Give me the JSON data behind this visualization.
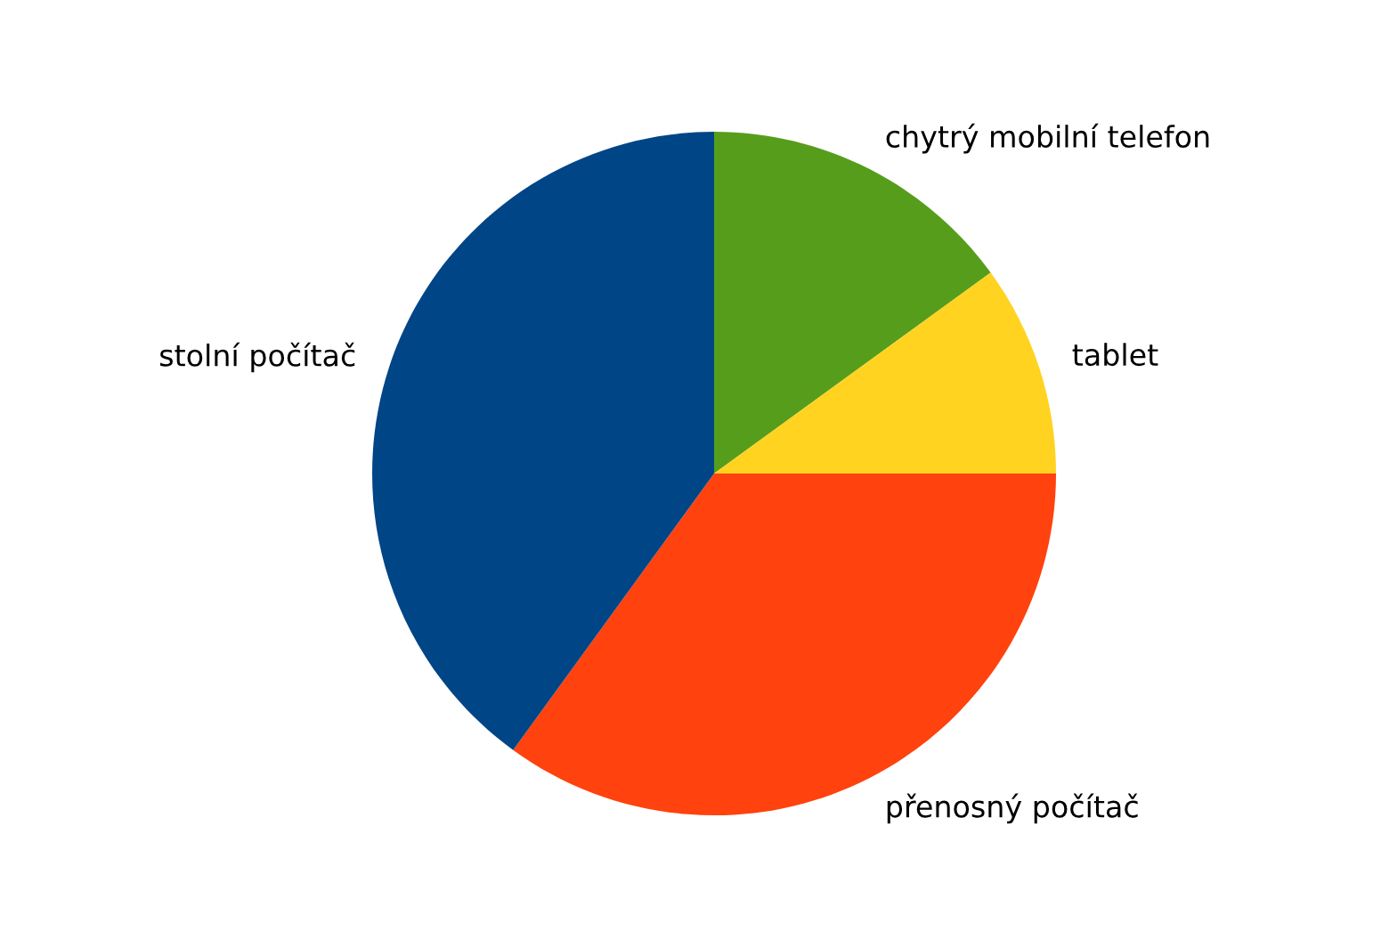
{
  "chart_data": {
    "type": "pie",
    "categories": [
      "chytrý mobilní telefon",
      "tablet",
      "přenosný počítač",
      "stolní počítač"
    ],
    "values": [
      15,
      10,
      35,
      40
    ],
    "colors": [
      "#579d1c",
      "#ffd320",
      "#ff420e",
      "#004586"
    ],
    "legend": false
  }
}
